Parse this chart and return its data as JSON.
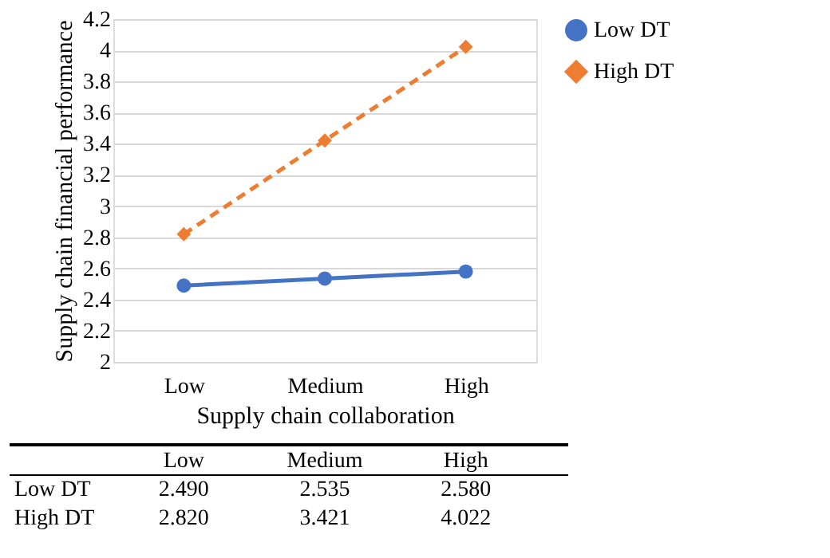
{
  "chart_data": {
    "type": "line",
    "xlabel": "Supply chain collaboration",
    "ylabel": "Supply chain financial performance",
    "categories": [
      "Low",
      "Medium",
      "High"
    ],
    "series": [
      {
        "name": "Low DT",
        "color": "#4472c4",
        "values": [
          2.49,
          2.535,
          2.58
        ],
        "value_labels": [
          "2.490",
          "2.535",
          "2.580"
        ],
        "marker": "circle",
        "line_style": "solid"
      },
      {
        "name": "High DT",
        "color": "#ed7d31",
        "values": [
          2.82,
          3.421,
          4.022
        ],
        "value_labels": [
          "2.820",
          "3.421",
          "4.022"
        ],
        "marker": "diamond",
        "line_style": "dashed"
      }
    ],
    "ylim": [
      2,
      4.2
    ],
    "yticks": [
      2,
      2.2,
      2.4,
      2.6,
      2.8,
      3,
      3.2,
      3.4,
      3.6,
      3.8,
      4,
      4.2
    ],
    "grid": "y",
    "legend": "right"
  }
}
